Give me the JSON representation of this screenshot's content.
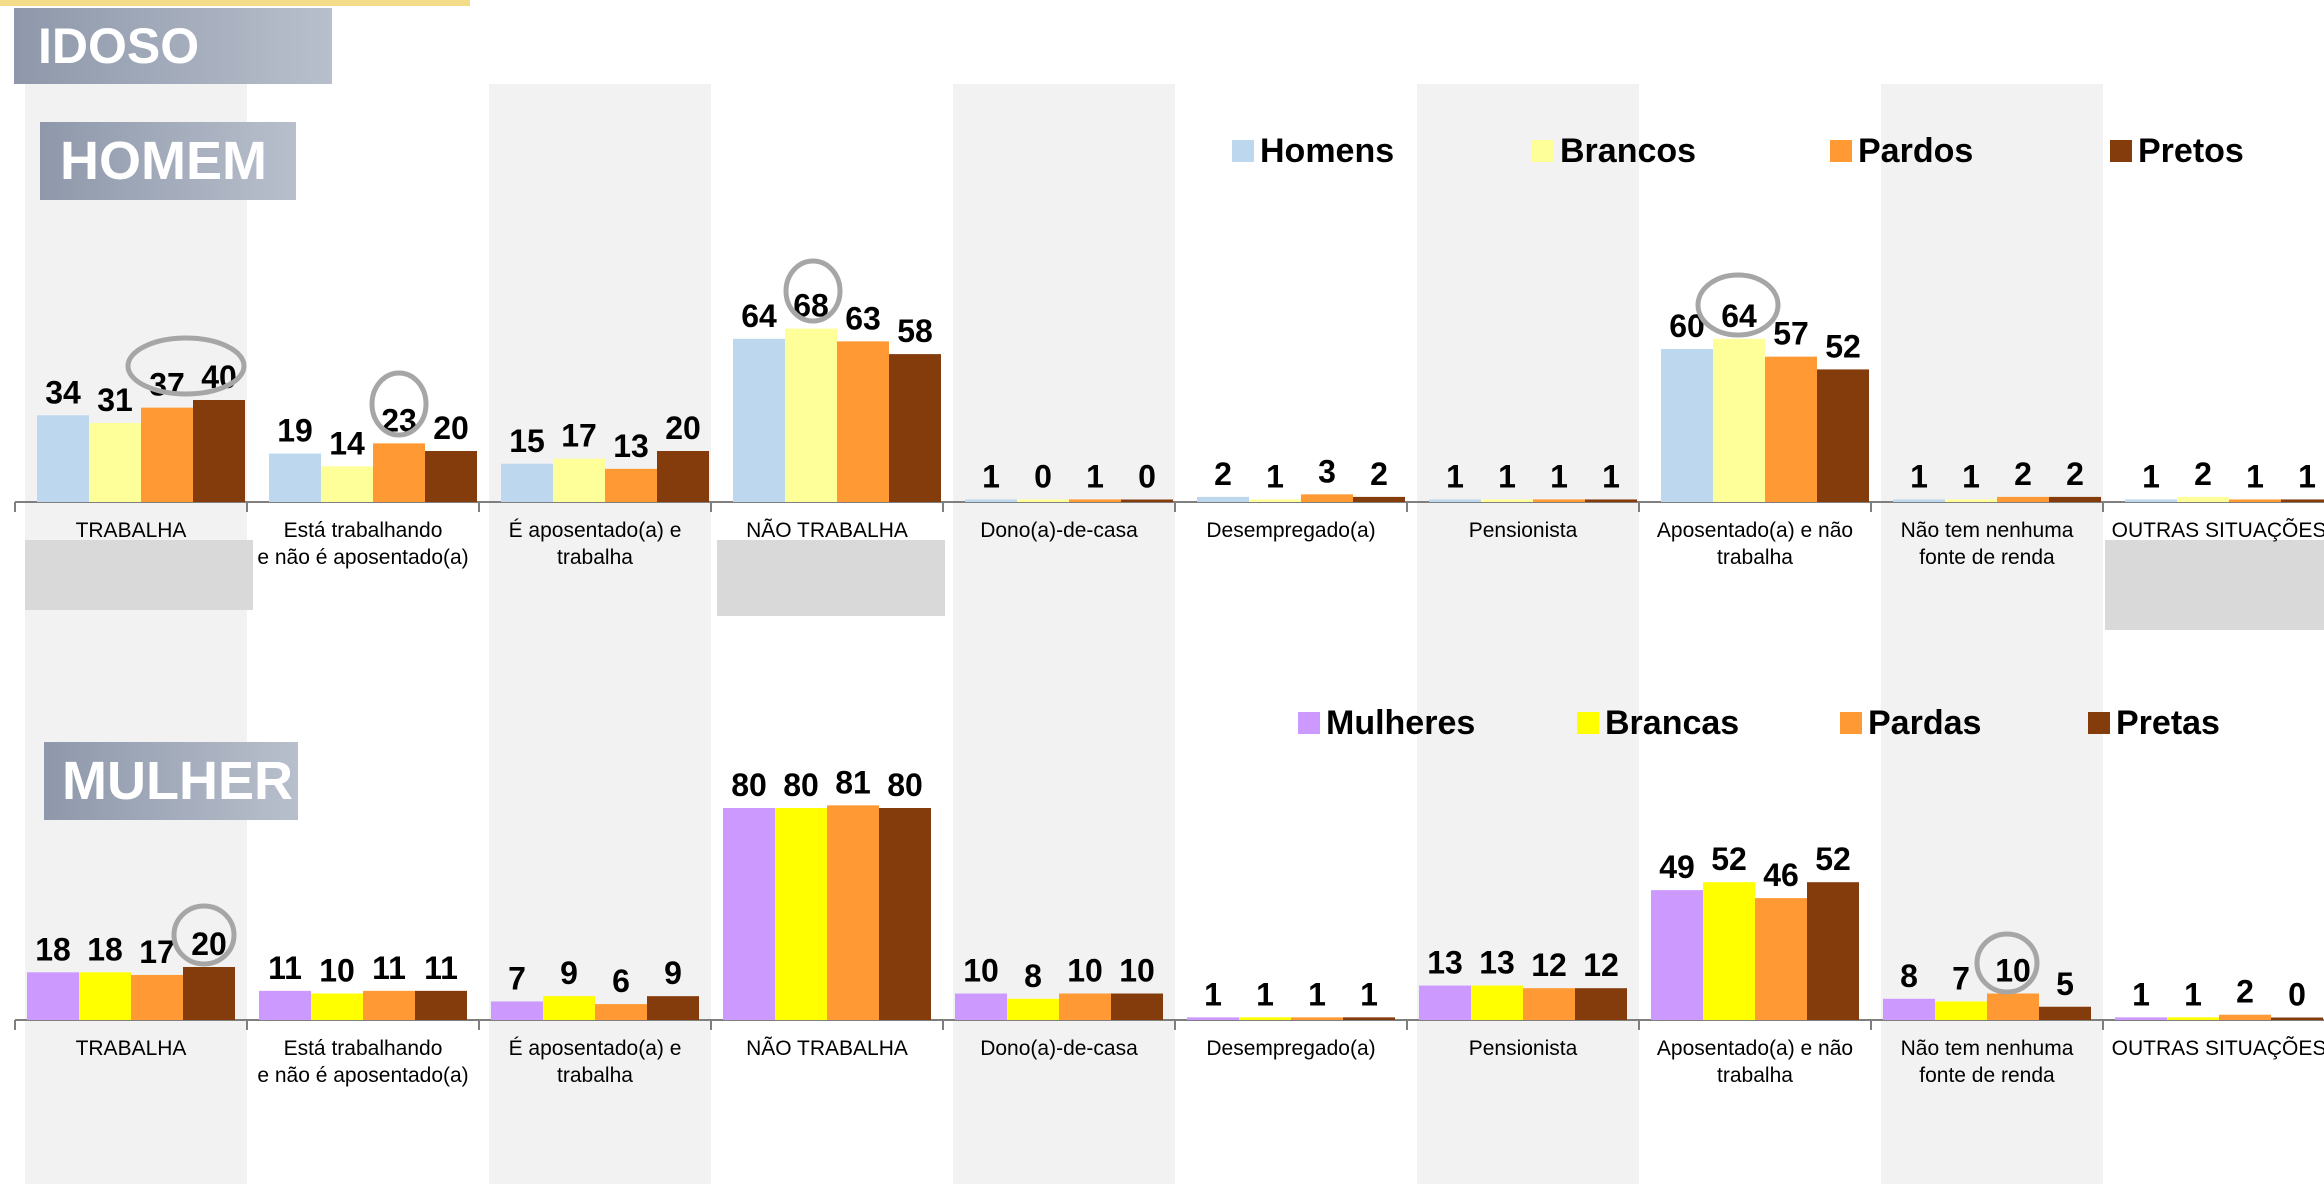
{
  "header": {
    "idoso_label": "IDOSO"
  },
  "chart_data": [
    {
      "type": "bar",
      "section_label": "HOMEM",
      "categories": [
        "TRABALHA",
        "Está trabalhando\ne não é aposentado(a)",
        "É aposentado(a) e\ntrabalha",
        "NÃO TRABALHA",
        "Dono(a)-de-casa",
        "Desempregado(a)",
        "Pensionista",
        "Aposentado(a) e não\ntrabalha",
        "Não tem nenhuma\nfonte de renda",
        "OUTRAS SITUAÇÕES"
      ],
      "series": [
        {
          "name": "Homens",
          "color": "#bdd7ee",
          "values": [
            34,
            19,
            15,
            64,
            1,
            2,
            1,
            60,
            1,
            1
          ]
        },
        {
          "name": "Brancos",
          "color": "#ffff99",
          "values": [
            31,
            14,
            17,
            68,
            0,
            1,
            1,
            64,
            1,
            2
          ]
        },
        {
          "name": "Pardos",
          "color": "#ff9933",
          "values": [
            37,
            23,
            13,
            63,
            1,
            3,
            1,
            57,
            2,
            1
          ]
        },
        {
          "name": "Pretos",
          "color": "#843c0c",
          "values": [
            40,
            20,
            20,
            58,
            0,
            2,
            1,
            52,
            2,
            1
          ]
        }
      ],
      "highlighted_categories": [
        "TRABALHA",
        "NÃO TRABALHA",
        "OUTRAS SITUAÇÕES"
      ],
      "circled": [
        "37 40",
        "23",
        "68",
        "64"
      ]
    },
    {
      "type": "bar",
      "section_label": "MULHER",
      "categories": [
        "TRABALHA",
        "Está trabalhando\ne não é aposentado(a)",
        "É aposentado(a) e\ntrabalha",
        "NÃO TRABALHA",
        "Dono(a)-de-casa",
        "Desempregado(a)",
        "Pensionista",
        "Aposentado(a) e não\ntrabalha",
        "Não tem nenhuma\nfonte de renda",
        "OUTRAS SITUAÇÕES"
      ],
      "series": [
        {
          "name": "Mulheres",
          "color": "#cc99ff",
          "values": [
            18,
            11,
            7,
            80,
            10,
            1,
            13,
            49,
            8,
            1
          ]
        },
        {
          "name": "Brancas",
          "color": "#ffff00",
          "values": [
            18,
            10,
            9,
            80,
            8,
            1,
            13,
            52,
            7,
            1
          ]
        },
        {
          "name": "Pardas",
          "color": "#ff9933",
          "values": [
            17,
            11,
            6,
            81,
            10,
            1,
            12,
            46,
            10,
            2
          ]
        },
        {
          "name": "Pretas",
          "color": "#843c0c",
          "values": [
            20,
            11,
            9,
            80,
            10,
            1,
            12,
            52,
            5,
            0
          ]
        }
      ],
      "circled": [
        "20",
        "10"
      ]
    }
  ]
}
